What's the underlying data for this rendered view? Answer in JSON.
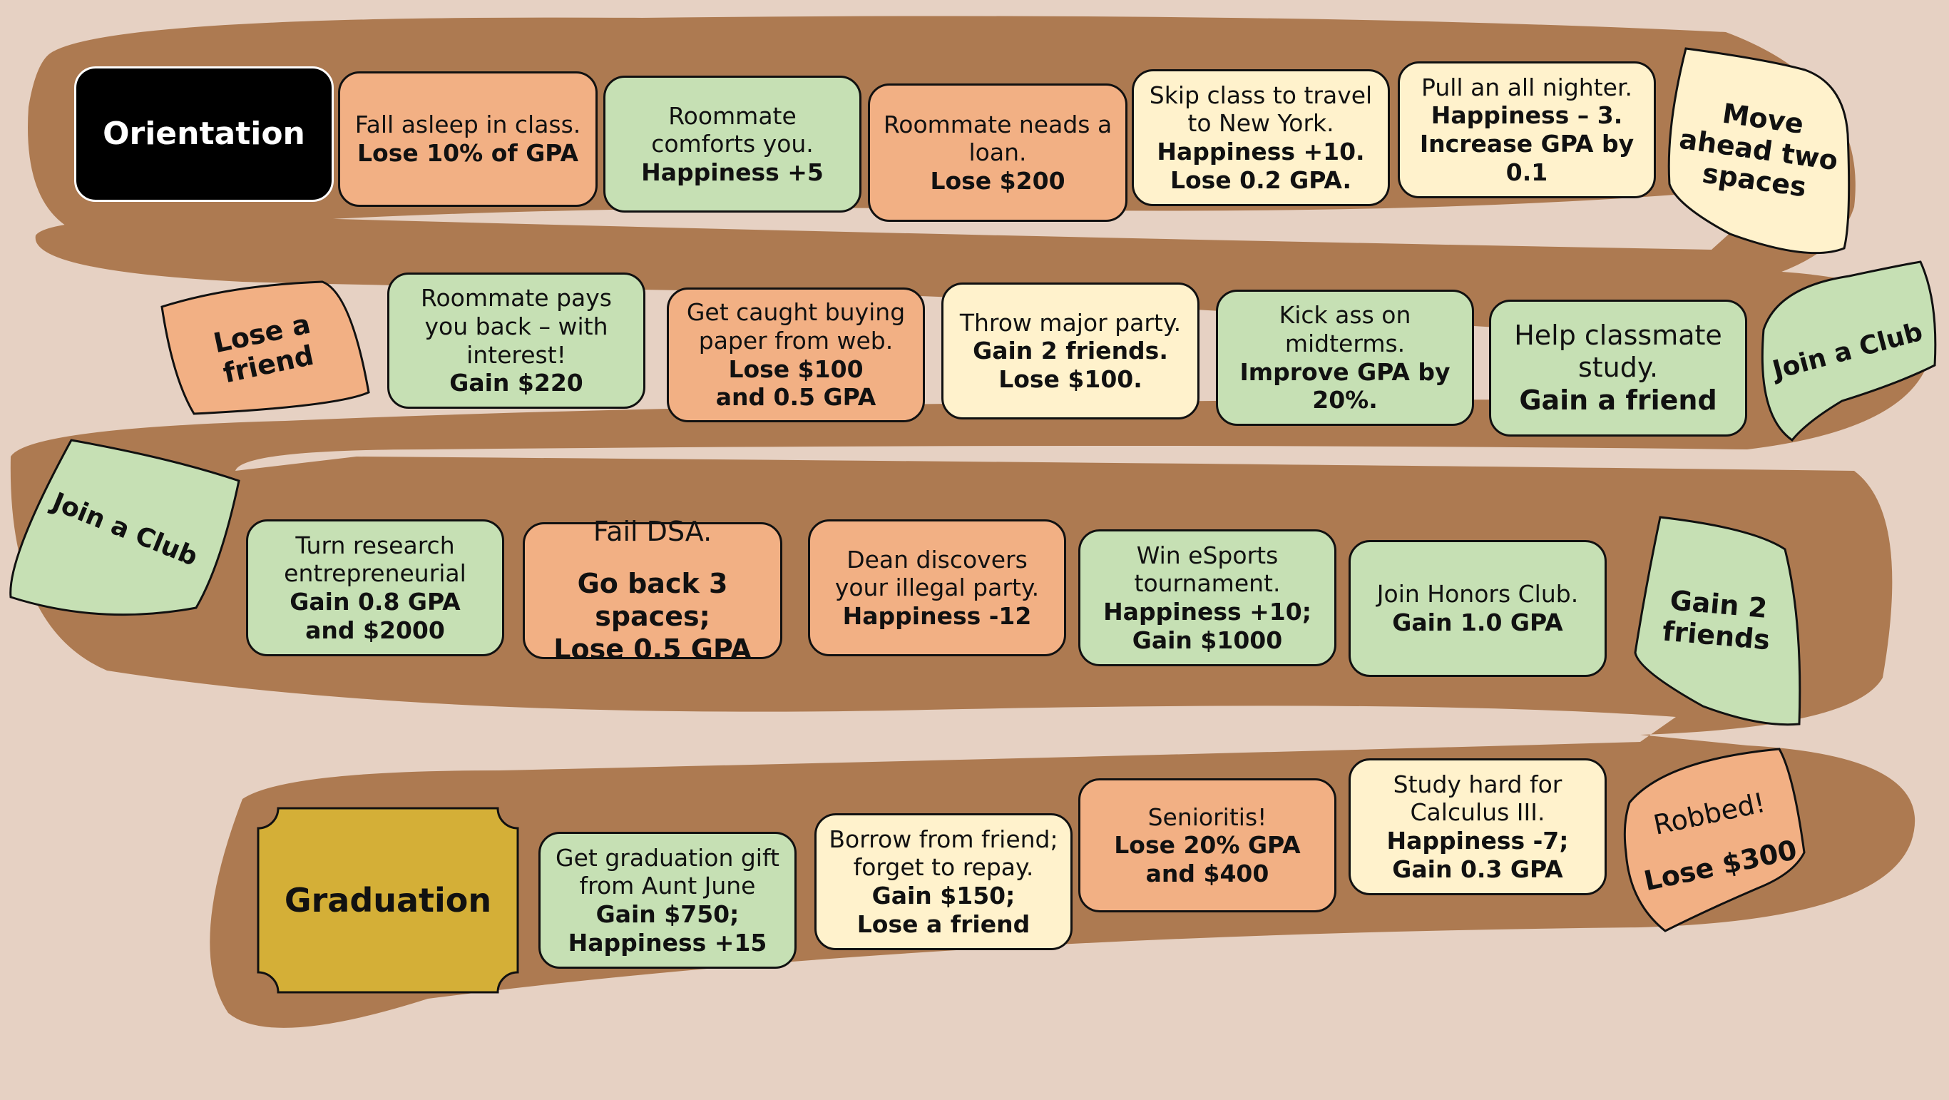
{
  "board": {
    "colors": {
      "background": "#e6d1c3",
      "path": "#ad7a51",
      "peach": "#f2b084",
      "green": "#c6e0b4",
      "cream": "#fff2cc",
      "start": "#000000",
      "finish": "#d4af37"
    },
    "start": {
      "label": "Orientation"
    },
    "finish": {
      "label": "Graduation"
    },
    "row1": [
      {
        "id": "fall-asleep",
        "l1": "Fall asleep in class.",
        "l2": "Lose 10% of GPA"
      },
      {
        "id": "roommate-comforts",
        "l1": "Roommate comforts you.",
        "l2": "Happiness +5"
      },
      {
        "id": "roommate-loan",
        "l1": "Roommate neads a loan.",
        "l2": "Lose $200"
      },
      {
        "id": "skip-class",
        "l1": "Skip class to travel to New York.",
        "l2": "Happiness +10.",
        "l3": "Lose 0.2 GPA."
      },
      {
        "id": "all-nighter",
        "l1": "Pull an all nighter.",
        "l2": "Happiness – 3.",
        "l3": "Increase GPA by 0.1"
      }
    ],
    "move_ahead": {
      "label": "Move ahead two spaces"
    },
    "row2": [
      {
        "id": "roommate-pays",
        "l1": "Roommate pays you back – with interest!",
        "l2": "Gain $220"
      },
      {
        "id": "caught-buying",
        "l1": "Get caught buying paper from web.",
        "l2": "Lose $100",
        "l3": "and 0.5 GPA"
      },
      {
        "id": "throw-party",
        "l1": "Throw major party.",
        "l2": "Gain 2 friends.",
        "l3": "Lose $100."
      },
      {
        "id": "midterms",
        "l1": "Kick ass on midterms.",
        "l2": "Improve GPA by 20%."
      },
      {
        "id": "help-classmate",
        "l1": "Help classmate study.",
        "l2": "Gain a friend"
      }
    ],
    "lose_friend": {
      "label": "Lose a friend"
    },
    "join_club_right": {
      "label": "Join a Club"
    },
    "join_club_left": {
      "label": "Join a Club"
    },
    "row3": [
      {
        "id": "research",
        "l1": "Turn research entrepreneurial",
        "l2": "Gain 0.8 GPA",
        "l3": "and $2000"
      },
      {
        "id": "fail-dsa",
        "l1": "Fail DSA.",
        "l2": "Go back 3 spaces;",
        "l3": "Lose 0.5 GPA"
      },
      {
        "id": "dean",
        "l1": "Dean discovers your illegal party.",
        "l2": "Happiness -12"
      },
      {
        "id": "esports",
        "l1": "Win eSports tournament.",
        "l2": "Happiness +10;",
        "l3": "Gain $1000"
      },
      {
        "id": "honors",
        "l1": "Join Honors Club.",
        "l2": "Gain 1.0 GPA"
      }
    ],
    "gain_two_friends": {
      "label": "Gain 2 friends"
    },
    "robbed": {
      "l1": "Robbed!",
      "l2": "Lose $300"
    },
    "row4": [
      {
        "id": "calculus",
        "l1": "Study hard for Calculus III.",
        "l2": "Happiness -7;",
        "l3": "Gain 0.3 GPA"
      },
      {
        "id": "senioritis",
        "l1": "Senioritis!",
        "l2": "Lose 20% GPA",
        "l3": "and $400"
      },
      {
        "id": "borrow",
        "l1": "Borrow from  friend; forget to repay.",
        "l2": "Gain $150;",
        "l3": "Lose a friend"
      },
      {
        "id": "grad-gift",
        "l1": "Get graduation gift from Aunt June",
        "l2": "Gain $750;",
        "l3": "Happiness +15"
      }
    ]
  }
}
